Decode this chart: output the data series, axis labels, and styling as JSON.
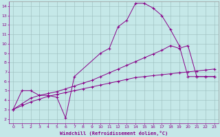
{
  "xlabel": "Windchill (Refroidissement éolien,°C)",
  "bg_color": "#c5e8e8",
  "line_color": "#880088",
  "grid_color": "#9bbcbc",
  "xlim": [
    -0.5,
    23.5
  ],
  "ylim": [
    1.5,
    14.5
  ],
  "xticks": [
    0,
    1,
    2,
    3,
    4,
    5,
    6,
    7,
    8,
    9,
    10,
    11,
    12,
    13,
    14,
    15,
    16,
    17,
    18,
    19,
    20,
    21,
    22,
    23
  ],
  "yticks": [
    2,
    3,
    4,
    5,
    6,
    7,
    8,
    9,
    10,
    11,
    12,
    13,
    14
  ],
  "s1x": [
    0,
    1,
    2,
    3,
    4,
    5,
    6,
    7,
    10,
    11,
    12,
    13,
    14,
    15,
    16,
    17,
    18,
    19,
    20,
    21,
    22,
    23
  ],
  "s1y": [
    3,
    5,
    5,
    4.5,
    4.5,
    4.3,
    2.1,
    6.5,
    9,
    9.5,
    11.8,
    12.5,
    14.3,
    14.3,
    13.8,
    13.0,
    11.5,
    9.8,
    6.5,
    6.5,
    6.5,
    6.5
  ],
  "s2x": [
    0,
    1,
    2,
    3,
    4,
    5,
    6,
    7,
    8,
    9,
    10,
    11,
    12,
    13,
    14,
    15,
    16,
    17,
    18,
    19,
    20,
    21,
    22,
    23
  ],
  "s2y": [
    3,
    3.4,
    3.8,
    4.1,
    4.4,
    4.6,
    4.8,
    5.0,
    5.2,
    5.4,
    5.6,
    5.8,
    6.0,
    6.2,
    6.4,
    6.5,
    6.6,
    6.7,
    6.8,
    6.9,
    7.0,
    7.1,
    7.2,
    7.3
  ],
  "s3x": [
    0,
    1,
    2,
    3,
    4,
    5,
    6,
    7,
    8,
    9,
    10,
    11,
    12,
    13,
    14,
    15,
    16,
    17,
    18,
    19,
    20,
    21,
    22,
    23
  ],
  "s3y": [
    3,
    3.6,
    4.2,
    4.5,
    4.7,
    4.9,
    5.2,
    5.5,
    5.8,
    6.1,
    6.5,
    6.9,
    7.3,
    7.7,
    8.1,
    8.5,
    8.9,
    9.3,
    9.8,
    9.5,
    9.8,
    6.5,
    6.5,
    6.5
  ]
}
